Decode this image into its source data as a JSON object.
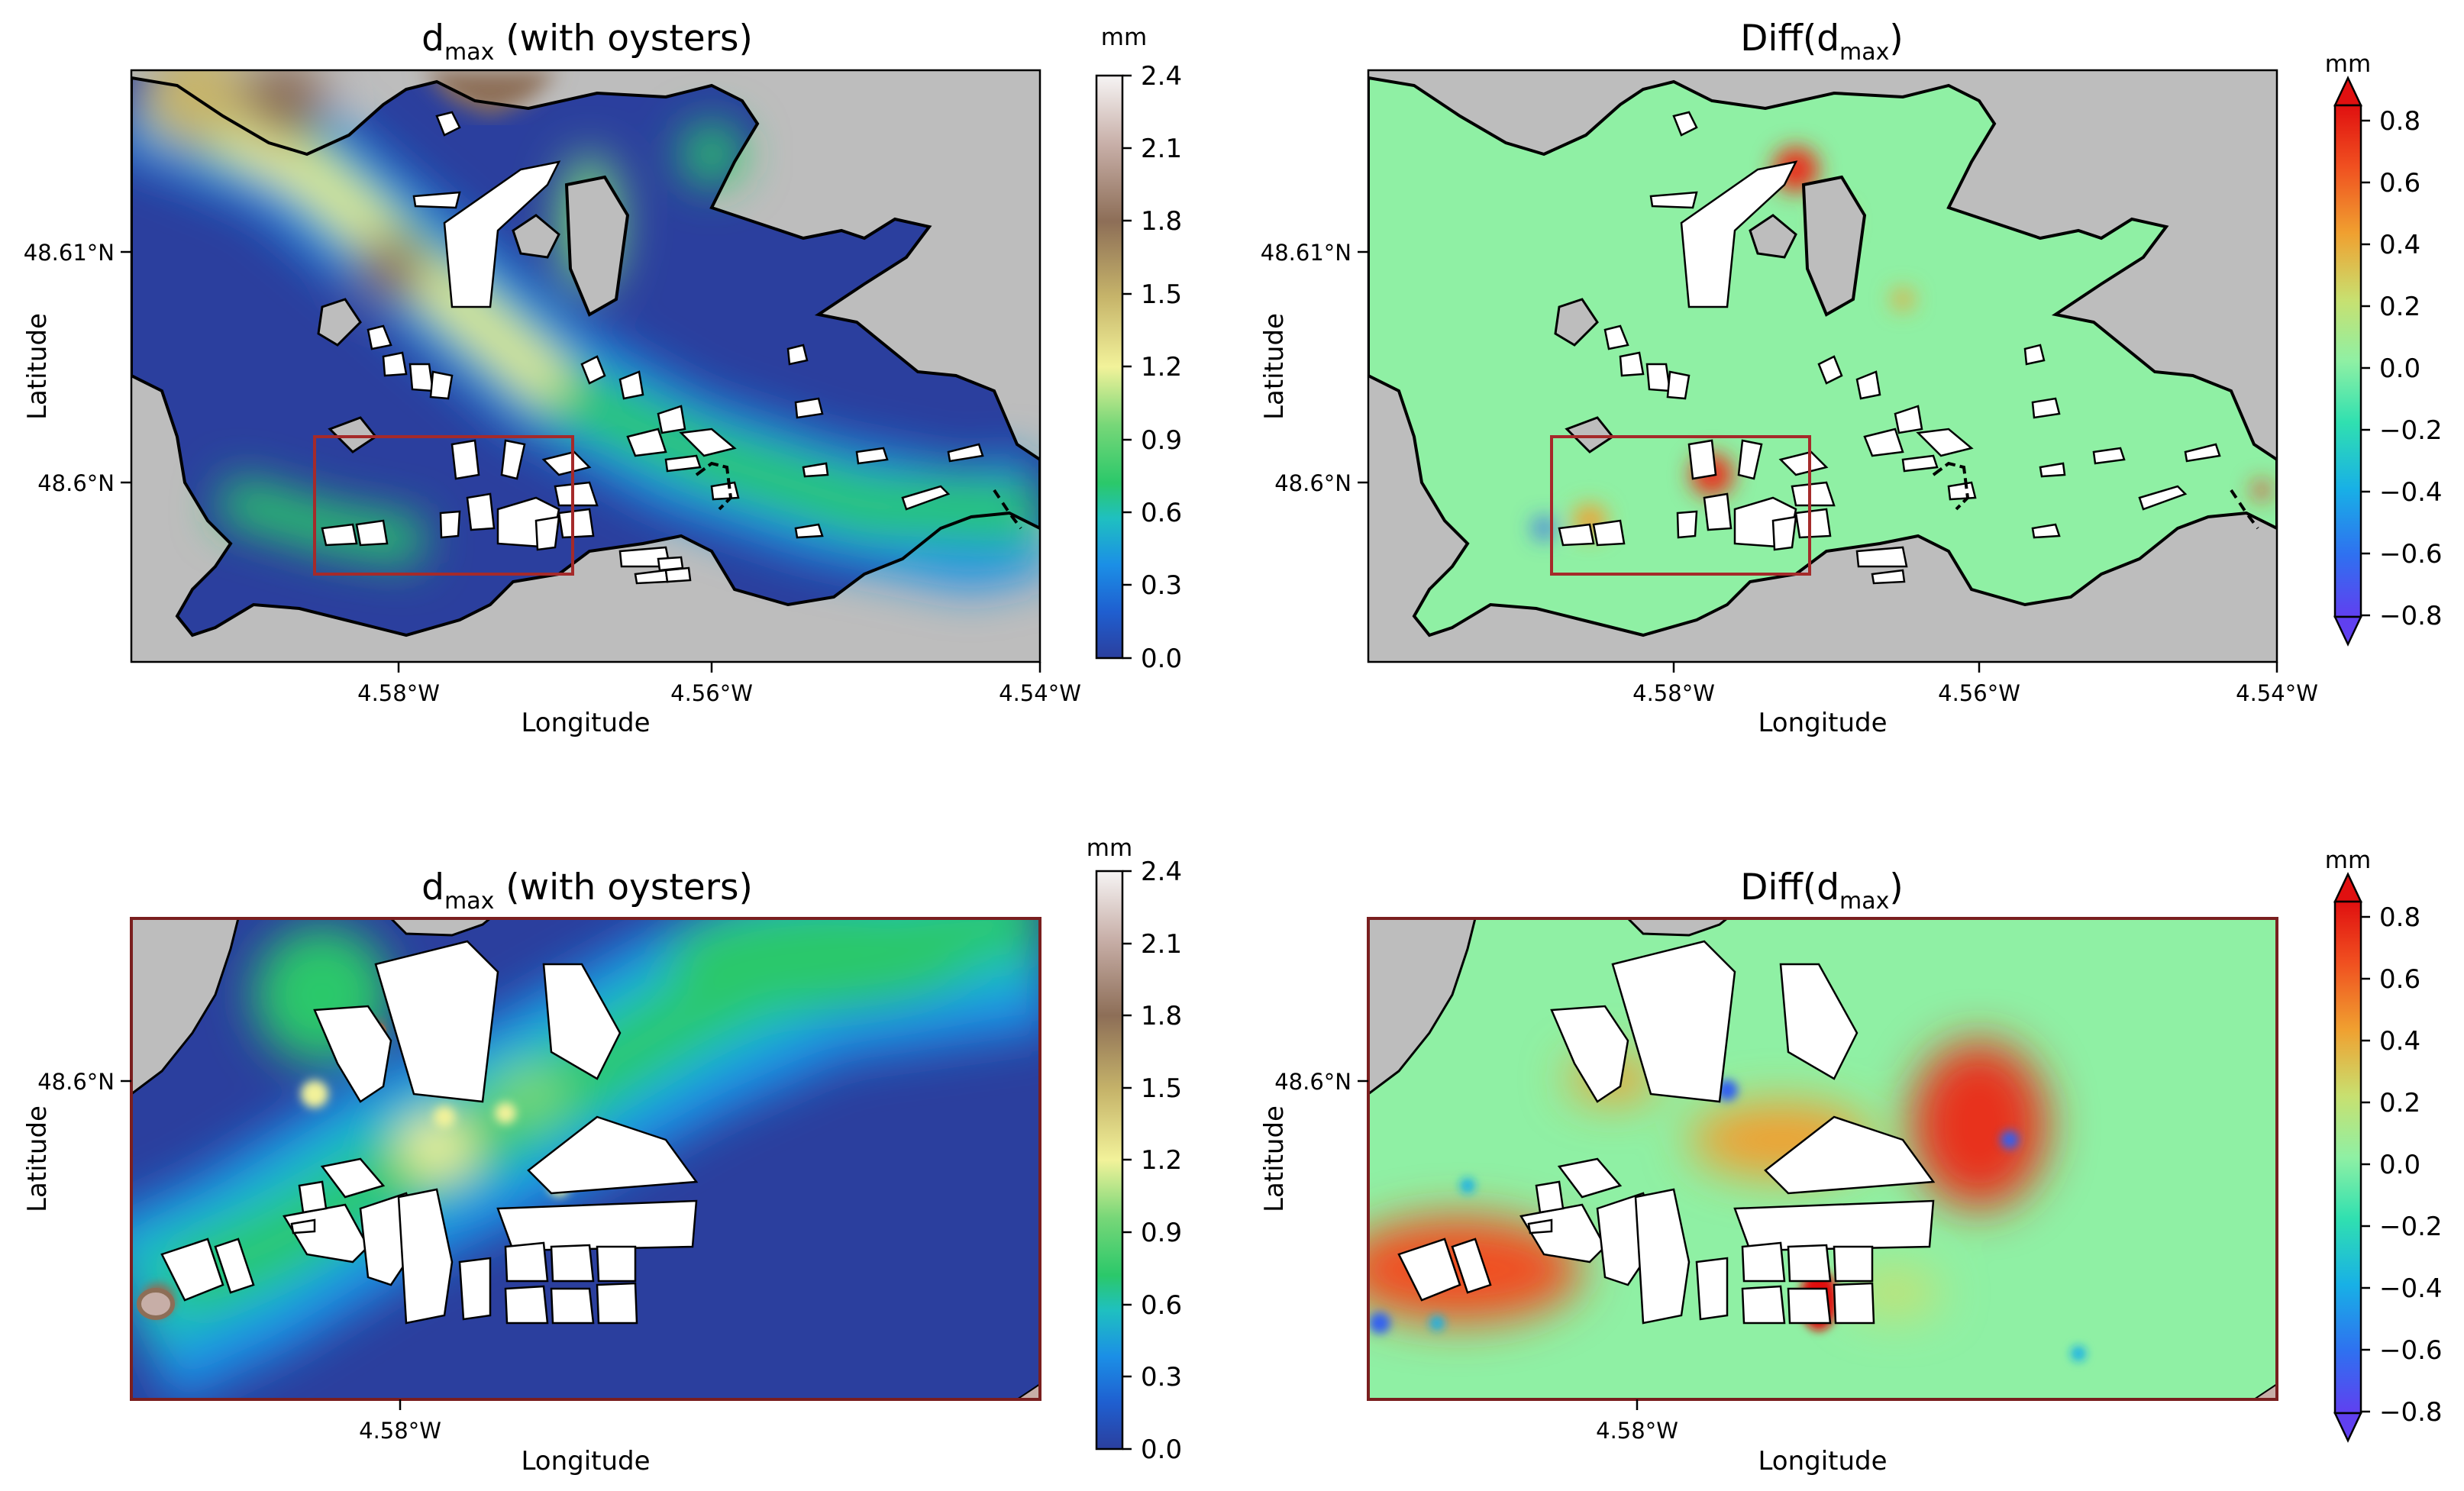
{
  "panels": [
    {
      "id": "top-left",
      "title_main": "d",
      "title_sub": "max",
      "title_rest": " (with oysters)",
      "xlabel": "Longitude",
      "ylabel": "Latitude",
      "xticks": [
        "4.58°W",
        "4.56°W",
        "4.54°W"
      ],
      "yticks": [
        "48.61°N",
        "48.6°N"
      ],
      "colorbar": {
        "unit": "mm",
        "ticks": [
          "2.4",
          "2.1",
          "1.8",
          "1.5",
          "1.2",
          "0.9",
          "0.6",
          "0.3",
          "0.0"
        ]
      }
    },
    {
      "id": "top-right",
      "title_main": "Diff(d",
      "title_sub": "max",
      "title_rest": ")",
      "xlabel": "Longitude",
      "ylabel": "Latitude",
      "xticks": [
        "4.58°W",
        "4.56°W",
        "4.54°W"
      ],
      "yticks": [
        "48.61°N",
        "48.6°N"
      ],
      "colorbar": {
        "unit": "mm",
        "ticks": [
          "0.8",
          "0.6",
          "0.4",
          "0.2",
          "0.0",
          "−0.2",
          "−0.4",
          "−0.6",
          "−0.8"
        ]
      }
    },
    {
      "id": "bottom-left",
      "title_main": "d",
      "title_sub": "max",
      "title_rest": " (with oysters)",
      "xlabel": "Longitude",
      "ylabel": "Latitude",
      "xticks": [
        "4.58°W"
      ],
      "yticks": [
        "48.6°N"
      ],
      "colorbar": {
        "unit": "mm",
        "ticks": [
          "2.4",
          "2.1",
          "1.8",
          "1.5",
          "1.2",
          "0.9",
          "0.6",
          "0.3",
          "0.0"
        ]
      }
    },
    {
      "id": "bottom-right",
      "title_main": "Diff(d",
      "title_sub": "max",
      "title_rest": ")",
      "xlabel": "Longitude",
      "ylabel": "Latitude",
      "xticks": [
        "4.58°W"
      ],
      "yticks": [
        "48.6°N"
      ],
      "colorbar": {
        "unit": "mm",
        "ticks": [
          "0.8",
          "0.6",
          "0.4",
          "0.2",
          "0.0",
          "−0.2",
          "−0.4",
          "−0.6",
          "−0.8"
        ]
      }
    }
  ],
  "colors": {
    "land": "#bdbdbd",
    "zoom_box": "#a52a2a",
    "deep": "#2b3f9e",
    "diff_zero": "#8ff0a4",
    "diff_pos": "#e8301c",
    "diff_neg": "#3060f0"
  }
}
